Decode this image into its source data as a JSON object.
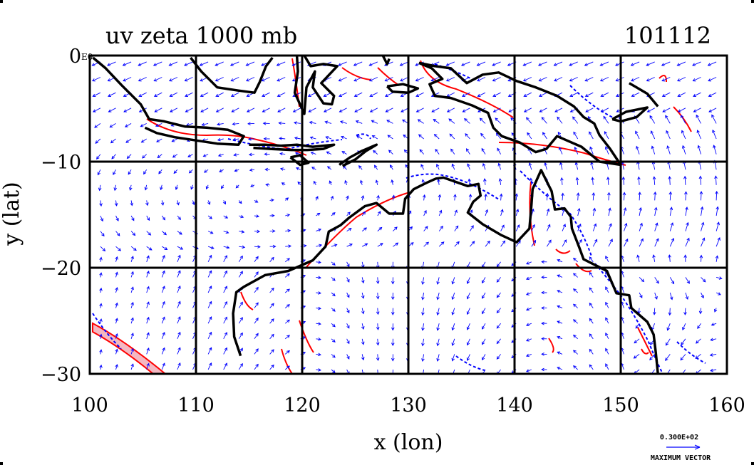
{
  "chart_data": {
    "type": "vector field with contours",
    "title": "uv zeta 1000 mb",
    "date_label": "101112",
    "xlabel": "x (lon)",
    "ylabel": "y (lat)",
    "xlim": [
      100,
      160
    ],
    "ylim": [
      -30,
      0
    ],
    "x_ticks": [
      100,
      110,
      120,
      130,
      140,
      150,
      160
    ],
    "y_ticks": [
      0,
      -10,
      -20,
      -30
    ],
    "x_tick_labels": [
      "100",
      "110",
      "120",
      "130",
      "140",
      "150",
      "160"
    ],
    "y_tick_labels": [
      "0",
      "−10",
      "−20",
      "−30"
    ],
    "y_tick_suffix": "E0",
    "grid": true,
    "grid_lines_x": [
      110,
      120,
      130,
      140,
      150
    ],
    "grid_lines_y": [
      -10,
      -20
    ],
    "vector_key_value": "0.300E+02",
    "vector_key_label": "MAXIMUM VECTOR",
    "colors": {
      "coast": "#000000",
      "vectors": "#0000ff",
      "positive_contour": "#ff0000",
      "negative_contour": "#0000ff"
    },
    "coastlines": [
      {
        "name": "sumatra-java",
        "points": [
          [
            100.3,
            -0.2
          ],
          [
            101.5,
            -1.2
          ],
          [
            103,
            -2.8
          ],
          [
            104.8,
            -4.6
          ],
          [
            105.6,
            -6.0
          ],
          [
            107,
            -6.2
          ],
          [
            109,
            -6.7
          ],
          [
            111,
            -6.8
          ],
          [
            113,
            -7.0
          ],
          [
            114.5,
            -7.6
          ],
          [
            114,
            -8.4
          ],
          [
            112,
            -8.3
          ],
          [
            110,
            -8.0
          ],
          [
            108,
            -7.7
          ],
          [
            106.3,
            -7.3
          ],
          [
            105.2,
            -6.8
          ]
        ]
      },
      {
        "name": "borneo",
        "points": [
          [
            109.5,
            -0.2
          ],
          [
            110.5,
            -1.5
          ],
          [
            112,
            -3.0
          ],
          [
            114,
            -3.3
          ],
          [
            115.5,
            -3.5
          ],
          [
            116,
            -2.5
          ],
          [
            116.6,
            -1.0
          ],
          [
            117.2,
            -0.2
          ]
        ]
      },
      {
        "name": "sulawesi",
        "points": [
          [
            119.5,
            0
          ],
          [
            119.6,
            -1.5
          ],
          [
            119.3,
            -3.5
          ],
          [
            120.2,
            -5.5
          ],
          [
            120.4,
            -3.0
          ],
          [
            121.2,
            -1.5
          ],
          [
            121,
            -3.0
          ],
          [
            122,
            -4.5
          ],
          [
            122.8,
            -4.6
          ],
          [
            123,
            -3.8
          ],
          [
            121.8,
            -2.6
          ],
          [
            123.3,
            -1.0
          ],
          [
            122,
            -0.8
          ],
          [
            120.8,
            -1.0
          ],
          [
            120.2,
            0
          ]
        ]
      },
      {
        "name": "halmahera",
        "points": [
          [
            127.6,
            0
          ],
          [
            128,
            -0.8
          ],
          [
            128.2,
            -0.3
          ]
        ]
      },
      {
        "name": "seram",
        "points": [
          [
            128,
            -2.9
          ],
          [
            129.5,
            -2.7
          ],
          [
            130.9,
            -3.1
          ],
          [
            130,
            -3.5
          ],
          [
            128.5,
            -3.4
          ],
          [
            128,
            -2.9
          ]
        ]
      },
      {
        "name": "new-guinea",
        "points": [
          [
            131,
            -0.7
          ],
          [
            132.5,
            -1.0
          ],
          [
            134,
            -1.2
          ],
          [
            135.5,
            -2.6
          ],
          [
            137,
            -1.8
          ],
          [
            138.5,
            -1.6
          ],
          [
            140.2,
            -2.4
          ],
          [
            142,
            -3.0
          ],
          [
            144,
            -3.8
          ],
          [
            145.6,
            -4.8
          ],
          [
            146.5,
            -5.8
          ],
          [
            147.5,
            -6.4
          ],
          [
            148,
            -7.5
          ],
          [
            149,
            -8.8
          ],
          [
            150,
            -10.3
          ],
          [
            148,
            -10
          ],
          [
            146.3,
            -8.6
          ],
          [
            144,
            -7.6
          ],
          [
            143,
            -8.8
          ],
          [
            142,
            -9.1
          ],
          [
            140.5,
            -8.2
          ],
          [
            138.8,
            -7.6
          ],
          [
            138,
            -6.8
          ],
          [
            137.5,
            -5.4
          ],
          [
            136,
            -4.7
          ],
          [
            134,
            -4.0
          ],
          [
            132.5,
            -3.8
          ],
          [
            132,
            -2.7
          ],
          [
            133.2,
            -2.2
          ],
          [
            132.2,
            -1.2
          ],
          [
            131,
            -0.7
          ]
        ]
      },
      {
        "name": "new-britain",
        "points": [
          [
            149.2,
            -6.0
          ],
          [
            150.5,
            -5.3
          ],
          [
            152.5,
            -4.9
          ],
          [
            151.5,
            -5.8
          ],
          [
            150,
            -6.2
          ],
          [
            149.2,
            -6.0
          ]
        ]
      },
      {
        "name": "new-ireland",
        "points": [
          [
            150.8,
            -2.6
          ],
          [
            152.5,
            -3.6
          ],
          [
            153.5,
            -4.8
          ]
        ]
      },
      {
        "name": "lesser-sunda",
        "points": [
          [
            115,
            -8.4
          ],
          [
            116.5,
            -8.4
          ],
          [
            118,
            -8.5
          ],
          [
            119.5,
            -8.4
          ],
          [
            121,
            -8.6
          ],
          [
            123,
            -8.4
          ],
          [
            122,
            -8.8
          ],
          [
            120.5,
            -8.9
          ],
          [
            119,
            -8.9
          ],
          [
            117,
            -8.8
          ],
          [
            115.4,
            -8.7
          ]
        ]
      },
      {
        "name": "sumba",
        "points": [
          [
            118.9,
            -9.6
          ],
          [
            119.8,
            -9.4
          ],
          [
            120.6,
            -10.1
          ],
          [
            119.8,
            -10.3
          ],
          [
            118.9,
            -9.6
          ]
        ]
      },
      {
        "name": "timor",
        "points": [
          [
            123.5,
            -10.3
          ],
          [
            124.5,
            -9.6
          ],
          [
            125.6,
            -9.0
          ],
          [
            127,
            -8.4
          ],
          [
            126,
            -9.0
          ],
          [
            125,
            -9.8
          ],
          [
            123.8,
            -10.4
          ]
        ]
      },
      {
        "name": "australia",
        "points": [
          [
            114.2,
            -28.3
          ],
          [
            113.6,
            -26.5
          ],
          [
            113.5,
            -24.3
          ],
          [
            113.8,
            -22.3
          ],
          [
            114.5,
            -21.8
          ],
          [
            116.5,
            -20.7
          ],
          [
            118.7,
            -20.3
          ],
          [
            121,
            -19.3
          ],
          [
            122.2,
            -18.0
          ],
          [
            122.5,
            -16.6
          ],
          [
            123.6,
            -16.0
          ],
          [
            124.4,
            -15.3
          ],
          [
            125.9,
            -14.2
          ],
          [
            127,
            -13.9
          ],
          [
            128.2,
            -14.9
          ],
          [
            129.5,
            -14.9
          ],
          [
            129.7,
            -13.5
          ],
          [
            130.5,
            -12.6
          ],
          [
            131.7,
            -12.0
          ],
          [
            132.6,
            -11.6
          ],
          [
            133.3,
            -11.5
          ],
          [
            135.6,
            -12.3
          ],
          [
            136.6,
            -12.1
          ],
          [
            136.8,
            -13.2
          ],
          [
            136.1,
            -13.8
          ],
          [
            135.6,
            -14.8
          ],
          [
            137,
            -15.9
          ],
          [
            138.7,
            -16.9
          ],
          [
            140.2,
            -17.6
          ],
          [
            141.4,
            -16.3
          ],
          [
            141.6,
            -14.0
          ],
          [
            141.7,
            -12.6
          ],
          [
            142.5,
            -10.8
          ],
          [
            143.5,
            -12.8
          ],
          [
            143.8,
            -14.5
          ],
          [
            144.7,
            -14.4
          ],
          [
            145.3,
            -15.2
          ],
          [
            145.4,
            -16.3
          ],
          [
            146.1,
            -18.1
          ],
          [
            146.5,
            -19.2
          ],
          [
            148.7,
            -20.3
          ],
          [
            149.6,
            -22.4
          ],
          [
            150.8,
            -22.6
          ],
          [
            151,
            -23.8
          ],
          [
            152.5,
            -25.1
          ],
          [
            153.1,
            -26.3
          ],
          [
            153.3,
            -28.0
          ],
          [
            153.5,
            -30
          ]
        ]
      }
    ]
  }
}
